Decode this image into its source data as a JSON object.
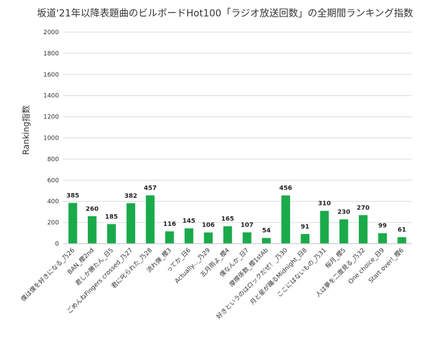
{
  "chart_data": {
    "type": "bar",
    "title": "坂道'21年以降表題曲のビルボードHot100「ラジオ放送回数」の全期間ランキング指数",
    "xlabel": "",
    "ylabel": "Ranking指数",
    "ylim": [
      0,
      2000
    ],
    "yticks": [
      0,
      200,
      400,
      600,
      800,
      1000,
      1200,
      1400,
      1600,
      1800,
      2000
    ],
    "grid": true,
    "legend": "none",
    "bar_color": "#1aaa4a",
    "categories": [
      "僕は僕を好きになる_乃26",
      "BAN_櫻2nd",
      "君しか勝たん_日5",
      "ごめんねFingers crossed_乃27",
      "君に叱られた_乃28",
      "流れ弾_櫻3",
      "ってか_日6",
      "Actually..._乃29",
      "五月雨よ_櫻4",
      "僕なんか_日7",
      "摩擦係数_櫻1stAb",
      "好きというのはロックだぜ！_乃30",
      "月と星が踊るMidnight_日8",
      "ここにはないもの_乃31",
      "桜月_櫻5",
      "人は夢を二度見る_乃32",
      "One choice_日9",
      "Start over!_櫻6"
    ],
    "values": [
      385,
      260,
      185,
      382,
      457,
      116,
      145,
      106,
      165,
      107,
      54,
      456,
      91,
      310,
      230,
      270,
      99,
      61
    ]
  }
}
